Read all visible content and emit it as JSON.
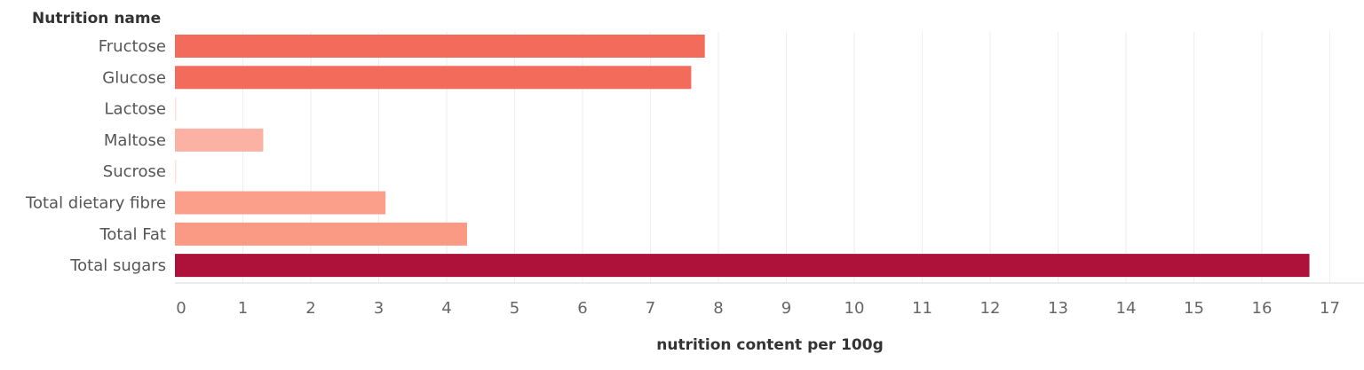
{
  "chart_data": {
    "type": "bar",
    "orientation": "horizontal",
    "row_header": "Nutrition name",
    "categories": [
      "Fructose",
      "Glucose",
      "Lactose",
      "Maltose",
      "Sucrose",
      "Total dietary fibre",
      "Total Fat",
      "Total sugars"
    ],
    "values": [
      7.8,
      7.6,
      0,
      1.3,
      0,
      3.1,
      4.3,
      16.7
    ],
    "colors": [
      "#f26b5b",
      "#f26b5b",
      "#fde1dc",
      "#fcb1a5",
      "#fde1dc",
      "#fb9f8b",
      "#fb9a84",
      "#ae123a"
    ],
    "xlabel": "nutrition content per 100g",
    "xlim": [
      0,
      17.5
    ],
    "xticks": [
      "0",
      "1",
      "2",
      "3",
      "4",
      "5",
      "6",
      "7",
      "8",
      "9",
      "10",
      "11",
      "12",
      "13",
      "14",
      "15",
      "16",
      "17"
    ],
    "grid": "vertical"
  }
}
